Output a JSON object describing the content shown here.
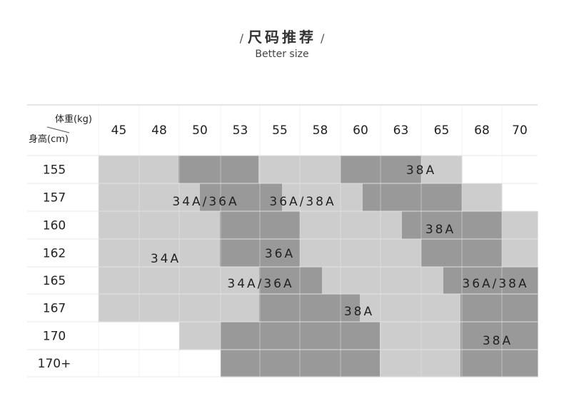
{
  "header": {
    "slash_left": "/",
    "title": "尺码推荐",
    "slash_right": "/",
    "subtitle": "Better size"
  },
  "table": {
    "corner_weight_label": "体重(kg)",
    "corner_height_label": "身高(cm)",
    "weights": [
      "45",
      "48",
      "50",
      "53",
      "55",
      "58",
      "60",
      "63",
      "65",
      "68",
      "70"
    ],
    "heights": [
      "155",
      "157",
      "160",
      "162",
      "165",
      "167",
      "170",
      "170+"
    ],
    "size_labels": [
      "38A",
      "34A/36A",
      "36A/38A",
      "38A",
      "34A",
      "36A",
      "34A/36A",
      "38A",
      "36A/38A",
      "38A"
    ]
  },
  "colors": {
    "light_zone": "#cdcdcd",
    "dark_zone": "#999999",
    "grid_line": "#e6e6e6"
  }
}
